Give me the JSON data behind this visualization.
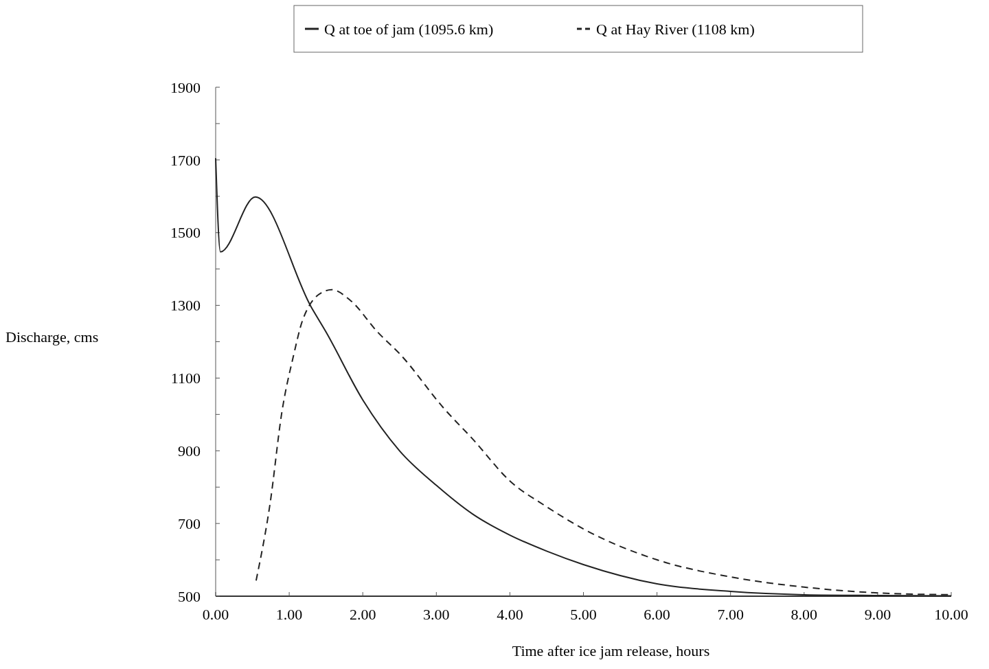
{
  "chart_data": {
    "type": "line",
    "xlabel": "Time after ice jam release, hours",
    "ylabel": "Discharge, cms",
    "xlim": [
      0,
      10
    ],
    "xticks": [
      {
        "value": 0,
        "label": "0.00"
      },
      {
        "value": 1,
        "label": "1.00"
      },
      {
        "value": 2,
        "label": "2.00"
      },
      {
        "value": 3,
        "label": "3.00"
      },
      {
        "value": 4,
        "label": "4.00"
      },
      {
        "value": 5,
        "label": "5.00"
      },
      {
        "value": 6,
        "label": "6.00"
      },
      {
        "value": 7,
        "label": "7.00"
      },
      {
        "value": 8,
        "label": "8.00"
      },
      {
        "value": 9,
        "label": "9.00"
      },
      {
        "value": 10,
        "label": "10.00"
      }
    ],
    "ylim": [
      500,
      1900
    ],
    "yticks": [
      500,
      {
        "value": 600,
        "label": null
      },
      700,
      {
        "value": 800,
        "label": null
      },
      900,
      {
        "value": 1000,
        "label": null
      },
      1100,
      {
        "value": 1200,
        "label": null
      },
      1300,
      {
        "value": 1400,
        "label": null
      },
      1500,
      {
        "value": 1600,
        "label": null
      },
      1700,
      {
        "value": 1800,
        "label": null
      },
      1900
    ],
    "grid": false,
    "legend": "top",
    "marker": "none",
    "series": [
      {
        "name": "Q at toe of jam (1095.6 km)",
        "color": "#222222",
        "line_style": "solid",
        "x": [
          0,
          0.065,
          0.54,
          1.3,
          1.5,
          2,
          2.5,
          3,
          3.5,
          4,
          4.5,
          5,
          6,
          7,
          8,
          9,
          10
        ],
        "values": [
          1705,
          1447,
          1598,
          1295,
          1227,
          1040,
          900,
          805,
          725,
          668,
          624,
          587,
          534,
          513,
          504,
          502,
          501
        ]
      },
      {
        "name": "Q at Hay River (1108 km)",
        "color": "#222222",
        "line_style": "dashed",
        "x": [
          0.55,
          0.74,
          0.9,
          1.06,
          1.18,
          1.46,
          1.58,
          1.83,
          2.2,
          2.51,
          3.11,
          3.5,
          4,
          4.5,
          5,
          6,
          7,
          8,
          9,
          10
        ],
        "values": [
          543,
          755,
          1006,
          1163,
          1258,
          1337,
          1343,
          1314,
          1227,
          1165,
          1015,
          931,
          817,
          746,
          685,
          600,
          553,
          525,
          509,
          504
        ]
      }
    ]
  }
}
